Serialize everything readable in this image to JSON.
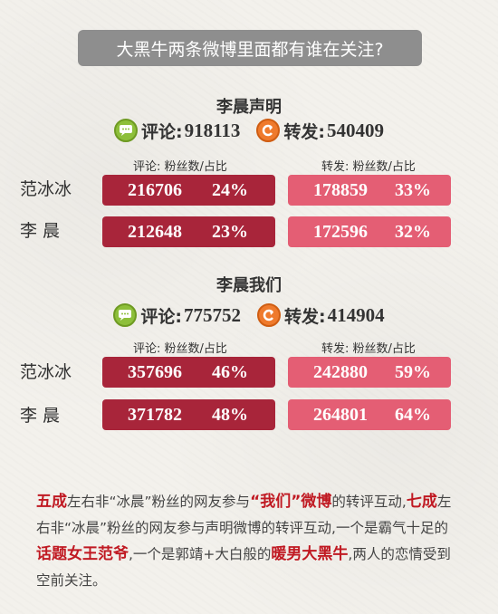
{
  "banner": "大黑牛两条微博里面都有谁在关注?",
  "sections": [
    {
      "title": "李晨声明",
      "comment_label": "评论:",
      "comment_count": "918113",
      "repost_label": "转发:",
      "repost_count": "540409",
      "comment_header": "评论: 粉丝数/占比",
      "repost_header": "转发: 粉丝数/占比",
      "rows": [
        {
          "name": "范冰冰",
          "comment_value": "216706",
          "comment_pct": "24%",
          "repost_value": "178859",
          "repost_pct": "33%"
        },
        {
          "name": "李  晨",
          "comment_value": "212648",
          "comment_pct": "23%",
          "repost_value": "172596",
          "repost_pct": "32%"
        }
      ]
    },
    {
      "title": "李晨我们",
      "comment_label": "评论:",
      "comment_count": "775752",
      "repost_label": "转发:",
      "repost_count": "414904",
      "comment_header": "评论: 粉丝数/占比",
      "repost_header": "转发: 粉丝数/占比",
      "rows": [
        {
          "name": "范冰冰",
          "comment_value": "357696",
          "comment_pct": "46%",
          "repost_value": "242880",
          "repost_pct": "59%"
        },
        {
          "name": "李  晨",
          "comment_value": "371782",
          "comment_pct": "48%",
          "repost_value": "264801",
          "repost_pct": "64%"
        }
      ]
    }
  ],
  "footer": {
    "p1_hl": "五成",
    "p1": "左右非“冰晨”粉丝的网友参与",
    "p2_hl": "“我们”微博",
    "p2": "的转评互动,",
    "p3_hl": "七成",
    "p3": "左右非“冰晨”粉丝的网友参与声明微博的转评互动,一个是霸气十足的",
    "p4_hl": "话题女王范爷",
    "p4": ",一个是郭靖+大白般的",
    "p5_hl": "暖男大黑牛",
    "p5": ",两人的恋情受到空前关注。"
  },
  "colors": {
    "dark_pill": "#a8253a",
    "light_pill": "#e45e74",
    "highlight": "#c01922",
    "banner": "#8e8e8e"
  },
  "icons": {
    "comment": "comment-bubble-icon",
    "repost": "repost-arrow-icon"
  }
}
